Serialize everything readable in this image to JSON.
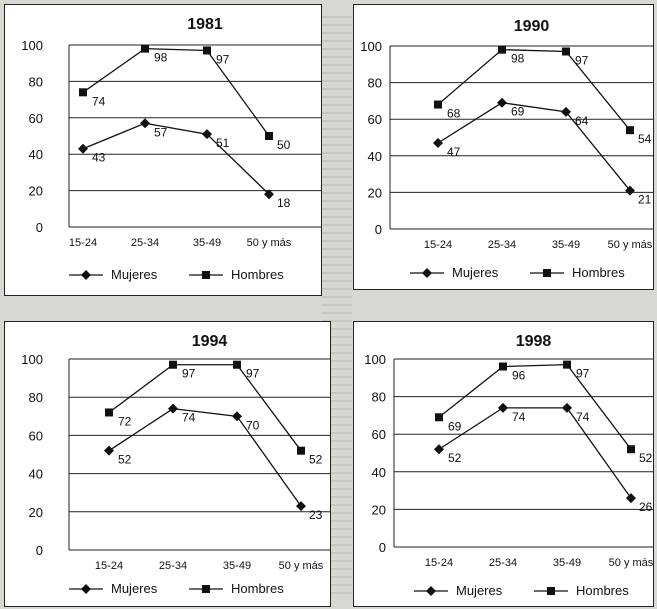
{
  "chart_data": [
    {
      "type": "line",
      "title": "1981",
      "categories": [
        "15-24",
        "25-34",
        "35-49",
        "50 y más"
      ],
      "yticks": [
        0,
        20,
        40,
        60,
        80,
        100
      ],
      "ylim": [
        0,
        100
      ],
      "series": [
        {
          "name": "Mujeres",
          "marker": "diamond",
          "values": [
            43,
            57,
            51,
            18
          ]
        },
        {
          "name": "Hombres",
          "marker": "square",
          "values": [
            74,
            98,
            97,
            50
          ]
        }
      ]
    },
    {
      "type": "line",
      "title": "1990",
      "categories": [
        "15-24",
        "25-34",
        "35-49",
        "50 y más"
      ],
      "yticks": [
        0,
        20,
        40,
        60,
        80,
        100
      ],
      "ylim": [
        0,
        100
      ],
      "series": [
        {
          "name": "Mujeres",
          "marker": "diamond",
          "values": [
            47,
            69,
            64,
            21
          ]
        },
        {
          "name": "Hombres",
          "marker": "square",
          "values": [
            68,
            98,
            97,
            54
          ]
        }
      ]
    },
    {
      "type": "line",
      "title": "1994",
      "categories": [
        "15-24",
        "25-34",
        "35-49",
        "50 y más"
      ],
      "yticks": [
        0,
        20,
        40,
        60,
        80,
        100
      ],
      "ylim": [
        0,
        100
      ],
      "series": [
        {
          "name": "Mujeres",
          "marker": "diamond",
          "values": [
            52,
            74,
            70,
            23
          ]
        },
        {
          "name": "Hombres",
          "marker": "square",
          "values": [
            72,
            97,
            97,
            52
          ]
        }
      ]
    },
    {
      "type": "line",
      "title": "1998",
      "categories": [
        "15-24",
        "25-34",
        "35-49",
        "50 y más"
      ],
      "yticks": [
        0,
        20,
        40,
        60,
        80,
        100
      ],
      "ylim": [
        0,
        100
      ],
      "series": [
        {
          "name": "Mujeres",
          "marker": "diamond",
          "values": [
            52,
            74,
            74,
            26
          ]
        },
        {
          "name": "Hombres",
          "marker": "square",
          "values": [
            69,
            96,
            97,
            52
          ]
        }
      ]
    }
  ]
}
